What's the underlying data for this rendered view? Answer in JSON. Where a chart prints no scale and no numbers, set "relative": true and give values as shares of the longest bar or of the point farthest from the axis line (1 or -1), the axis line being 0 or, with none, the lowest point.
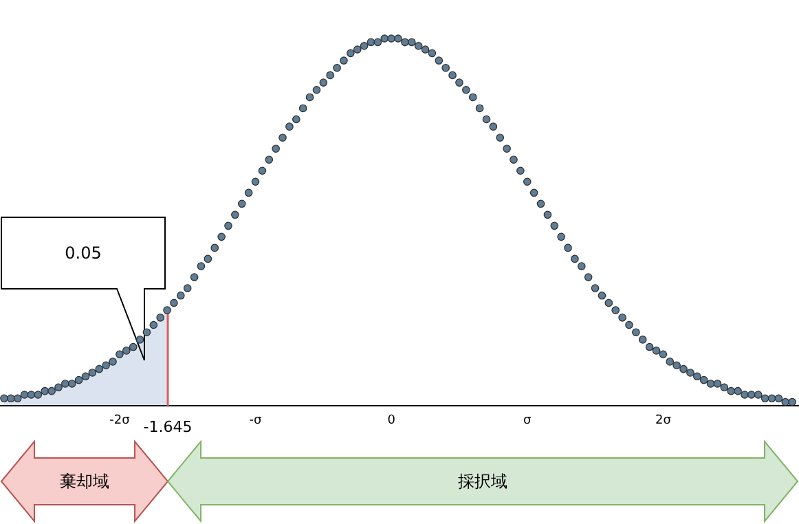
{
  "chart_data": {
    "type": "scatter",
    "relative": true,
    "x": [
      -2.85,
      -2.8,
      -2.75,
      -2.7,
      -2.65,
      -2.6,
      -2.55,
      -2.5,
      -2.45,
      -2.4,
      -2.35,
      -2.3,
      -2.25,
      -2.2,
      -2.15,
      -2.1,
      -2.05,
      -2.0,
      -1.95,
      -1.9,
      -1.85,
      -1.8,
      -1.75,
      -1.7,
      -1.65,
      -1.6,
      -1.55,
      -1.5,
      -1.45,
      -1.4,
      -1.35,
      -1.3,
      -1.25,
      -1.2,
      -1.15,
      -1.1,
      -1.05,
      -1.0,
      -0.95,
      -0.9,
      -0.85,
      -0.8,
      -0.75,
      -0.7,
      -0.65,
      -0.6,
      -0.55,
      -0.5,
      -0.45,
      -0.4,
      -0.35,
      -0.3,
      -0.25,
      -0.2,
      -0.15,
      -0.1,
      -0.05,
      0,
      0.05,
      0.1,
      0.15,
      0.2,
      0.25,
      0.3,
      0.35,
      0.4,
      0.45,
      0.5,
      0.55,
      0.6,
      0.65,
      0.7,
      0.75,
      0.8,
      0.85,
      0.9,
      0.95,
      1.0,
      1.05,
      1.1,
      1.15,
      1.2,
      1.25,
      1.3,
      1.35,
      1.4,
      1.45,
      1.5,
      1.55,
      1.6,
      1.65,
      1.7,
      1.75,
      1.8,
      1.85,
      1.9,
      1.95,
      2.0,
      2.05,
      2.1,
      2.15,
      2.2,
      2.25,
      2.3,
      2.35,
      2.4,
      2.45,
      2.5,
      2.55,
      2.6,
      2.65,
      2.7,
      2.75,
      2.8,
      2.85,
      2.9,
      2.95
    ],
    "series": [
      {
        "type": "area",
        "color": "#dae3ef",
        "x": [
          -2.85,
          -2.8,
          -2.75,
          -2.7,
          -2.65,
          -2.6,
          -2.55,
          -2.5,
          -2.45,
          -2.4,
          -2.35,
          -2.3,
          -2.25,
          -2.2,
          -2.15,
          -2.1,
          -2.05,
          -2.0,
          -1.95,
          -1.9,
          -1.85,
          -1.8,
          -1.75,
          -1.7,
          -1.645
        ],
        "values": [
          0.02,
          0.02,
          0.02,
          0.03,
          0.03,
          0.03,
          0.04,
          0.04,
          0.05,
          0.06,
          0.06,
          0.07,
          0.08,
          0.09,
          0.1,
          0.11,
          0.12,
          0.14,
          0.15,
          0.16,
          0.18,
          0.2,
          0.22,
          0.24,
          0.26
        ]
      },
      {
        "color": "#5f7d95",
        "marker": "circle",
        "values": [
          0.02,
          0.02,
          0.02,
          0.03,
          0.03,
          0.03,
          0.04,
          0.04,
          0.05,
          0.06,
          0.06,
          0.07,
          0.08,
          0.09,
          0.1,
          0.11,
          0.12,
          0.14,
          0.15,
          0.16,
          0.18,
          0.2,
          0.22,
          0.24,
          0.26,
          0.28,
          0.3,
          0.32,
          0.35,
          0.38,
          0.4,
          0.43,
          0.46,
          0.49,
          0.52,
          0.55,
          0.58,
          0.61,
          0.64,
          0.67,
          0.7,
          0.73,
          0.76,
          0.78,
          0.81,
          0.84,
          0.86,
          0.88,
          0.9,
          0.92,
          0.94,
          0.96,
          0.97,
          0.98,
          0.99,
          0.99,
          1.0,
          1.0,
          1.0,
          0.99,
          0.99,
          0.98,
          0.97,
          0.96,
          0.94,
          0.92,
          0.9,
          0.88,
          0.86,
          0.84,
          0.81,
          0.78,
          0.76,
          0.73,
          0.7,
          0.67,
          0.64,
          0.61,
          0.58,
          0.55,
          0.52,
          0.49,
          0.46,
          0.43,
          0.4,
          0.38,
          0.35,
          0.32,
          0.3,
          0.28,
          0.26,
          0.24,
          0.22,
          0.2,
          0.18,
          0.16,
          0.15,
          0.14,
          0.12,
          0.11,
          0.1,
          0.09,
          0.08,
          0.07,
          0.06,
          0.06,
          0.05,
          0.04,
          0.04,
          0.03,
          0.03,
          0.03,
          0.02,
          0.02,
          0.02,
          0.01,
          0.01
        ]
      }
    ],
    "xlim": [
      -2.88,
      3.0
    ],
    "xticks": [
      {
        "value": -2,
        "label": "-2σ"
      },
      {
        "value": -1,
        "label": "-σ"
      },
      0,
      {
        "value": 1,
        "label": "σ"
      },
      {
        "value": 2,
        "label": "2σ"
      }
    ],
    "ref_lines": [
      {
        "axis": "x",
        "value": -1.645,
        "label": "-1.645",
        "color": "#e05a5a"
      }
    ],
    "annotations": [
      "0.05",
      "棄却域",
      "採択域"
    ]
  }
}
